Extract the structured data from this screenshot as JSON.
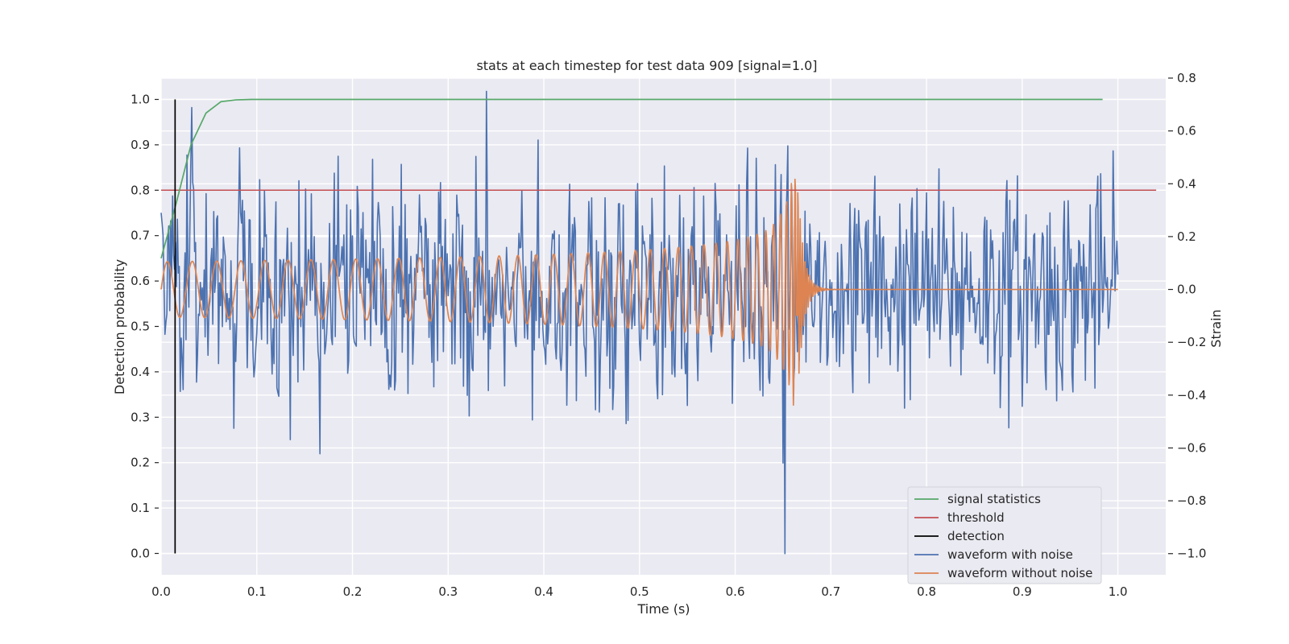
{
  "chart_data": {
    "type": "line",
    "title": "stats at each timestep for test data 909 [signal=1.0]",
    "xlabel": "Time (s)",
    "ylabel_left": "Detection probability",
    "ylabel_right": "Strain",
    "xlim": [
      0.0,
      1.05
    ],
    "ylim_left": [
      -0.047,
      1.047
    ],
    "ylim_right": [
      -1.08,
      0.8
    ],
    "x_ticks": [
      "0.0",
      "0.1",
      "0.2",
      "0.3",
      "0.4",
      "0.5",
      "0.6",
      "0.7",
      "0.8",
      "0.9",
      "1.0"
    ],
    "y_left_ticks": [
      "0.0",
      "0.1",
      "0.2",
      "0.3",
      "0.4",
      "0.5",
      "0.6",
      "0.7",
      "0.8",
      "0.9",
      "1.0"
    ],
    "y_right_ticks": [
      "−1.0",
      "−0.8",
      "−0.6",
      "−0.4",
      "−0.2",
      "0.0",
      "0.2",
      "0.4",
      "0.6",
      "0.8"
    ],
    "grid": true,
    "legend_position": "lower-right",
    "colors": {
      "signal_statistics": "#55a868",
      "threshold": "#c44e52",
      "detection": "#000000",
      "waveform_with_noise": "#4c72b0",
      "waveform_without_noise": "#dd8452",
      "plot_background": "#eaeaf2",
      "grid": "#ffffff"
    },
    "series": [
      {
        "name": "signal statistics",
        "axis": "left",
        "x": [
          0.0,
          0.0156,
          0.0312,
          0.0469,
          0.0625,
          0.0781,
          0.0938,
          0.2,
          0.4,
          0.6,
          0.8,
          0.984
        ],
        "y": [
          0.65,
          0.77,
          0.9,
          0.97,
          0.995,
          0.999,
          1.0,
          1.0,
          1.0,
          1.0,
          1.0,
          1.0
        ]
      },
      {
        "name": "threshold",
        "axis": "left",
        "x": [
          0.0,
          1.04
        ],
        "y": [
          0.8,
          0.8
        ]
      },
      {
        "name": "detection",
        "axis": "left",
        "x": [
          0.0146,
          0.0146
        ],
        "y": [
          0.0,
          1.0
        ]
      },
      {
        "name": "waveform with noise",
        "axis": "right",
        "x_range": [
          0.0,
          1.0
        ],
        "amplitude_rms": 0.2,
        "note_peaks": "min ~-1.0 at t=0.652, max ~0.75 at t=0.34"
      },
      {
        "name": "waveform without noise",
        "axis": "right",
        "x_range": [
          0.0,
          1.0
        ],
        "merger_time": 0.665,
        "peak_amplitude": 0.44
      }
    ],
    "legend": [
      "signal statistics",
      "threshold",
      "detection",
      "waveform with noise",
      "waveform without noise"
    ]
  }
}
